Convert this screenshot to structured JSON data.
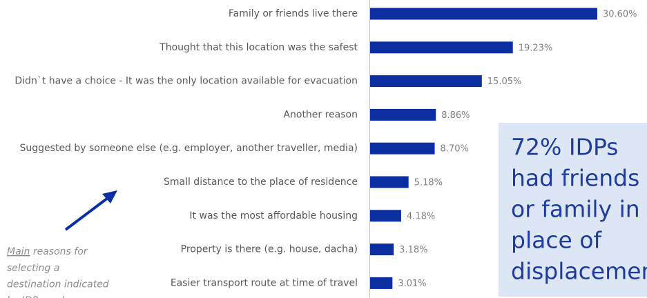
{
  "chart_data": {
    "type": "barh",
    "categories": [
      "Family or friends live there",
      "Thought that this location was the safest",
      "Didn`t have a choice - It was the only location available for evacuation",
      "Another reason",
      "Suggested by someone else (e.g. employer, another traveller, media)",
      "Small distance to the place of residence",
      "It was the most affordable housing",
      "Property is there (e.g. house, dacha)",
      "Easier transport route at time of travel"
    ],
    "values": [
      30.6,
      19.23,
      15.05,
      8.86,
      8.7,
      5.18,
      4.18,
      3.18,
      3.01
    ],
    "value_labels": [
      "30.60%",
      "19.23%",
      "15.05%",
      "8.86%",
      "8.70%",
      "5.18%",
      "4.18%",
      "3.18%",
      "3.01%"
    ],
    "color": "#0b2fa0",
    "annotation": [
      "72% IDPs",
      "had friends",
      "or family in",
      "place of",
      "displacement"
    ],
    "note_emphasis": "Main",
    "note_lines": [
      " reasons for",
      "selecting a",
      "destination indicated",
      "by IDPs and"
    ]
  }
}
